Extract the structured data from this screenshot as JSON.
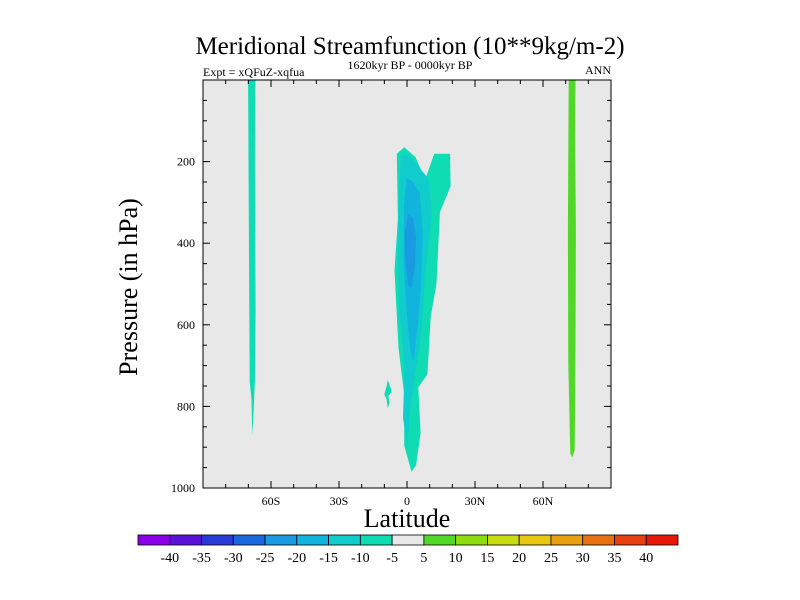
{
  "chart_data": {
    "type": "contour",
    "title": "Meridional Streamfunction (10**9kg/m-2)",
    "left_label": "Expt = xQFuZ-xqfua",
    "center_label": "1620kyr BP - 0000kyr BP",
    "right_label": "ANN",
    "xlabel": "Latitude",
    "ylabel": "Pressure (in hPa)",
    "xlim": [
      -90,
      90
    ],
    "ylim": [
      1000,
      0
    ],
    "x_ticks": [
      {
        "value": -60,
        "label": "60S"
      },
      {
        "value": -30,
        "label": "30S"
      },
      {
        "value": 0,
        "label": "0"
      },
      {
        "value": 30,
        "label": "30N"
      },
      {
        "value": 60,
        "label": "60N"
      }
    ],
    "y_ticks": [
      {
        "value": 200,
        "label": "200"
      },
      {
        "value": 400,
        "label": "400"
      },
      {
        "value": 600,
        "label": "600"
      },
      {
        "value": 800,
        "label": "800"
      },
      {
        "value": 1000,
        "label": "1000"
      }
    ],
    "background_color": "#e8e8e8",
    "colorbar": {
      "levels": [
        "-40",
        "-35",
        "-30",
        "-25",
        "-20",
        "-15",
        "-10",
        "-5",
        "5",
        "10",
        "15",
        "20",
        "25",
        "30",
        "35",
        "40"
      ],
      "colors": [
        "#8a00e8",
        "#5a10d8",
        "#2a3ad8",
        "#1a68e0",
        "#1a9ae0",
        "#10b4dc",
        "#10cccc",
        "#10dcb4",
        "#e8e8e8",
        "#50d828",
        "#8cdc10",
        "#c8dc10",
        "#e8c810",
        "#e8a010",
        "#e87010",
        "#e84010",
        "#e81808"
      ]
    },
    "features": [
      {
        "name": "southern-polar-column",
        "color": "#10dcb4",
        "lat_range": [
          -69.5,
          -67.5
        ],
        "p_range": [
          0,
          870
        ],
        "level": "-10 to -5"
      },
      {
        "name": "tropical-cell-outer",
        "color": "#10dcb4",
        "lat_range": [
          -5,
          20
        ],
        "p_range": [
          165,
          960
        ],
        "level": "-10 to -5"
      },
      {
        "name": "tropical-cell-mid",
        "color": "#10cccc",
        "lat_range": [
          -4,
          11
        ],
        "p_range": [
          185,
          900
        ],
        "level": "-15 to -10"
      },
      {
        "name": "tropical-cell-inner",
        "color": "#10b4dc",
        "lat_range": [
          -2,
          7
        ],
        "p_range": [
          240,
          690
        ],
        "level": "-20 to -15"
      },
      {
        "name": "tropical-cell-core",
        "color": "#1a9ae0",
        "lat_range": [
          -1,
          4
        ],
        "p_range": [
          330,
          510
        ],
        "level": "-25 to -20"
      },
      {
        "name": "small-blob",
        "color": "#10dcb4",
        "lat_range": [
          -10,
          -7
        ],
        "p_range": [
          735,
          805
        ],
        "level": "-10 to -5"
      },
      {
        "name": "northern-polar-column",
        "color": "#50d828",
        "lat_range": [
          71,
          74.5
        ],
        "p_range": [
          0,
          925
        ],
        "level": "5 to 10"
      }
    ]
  }
}
